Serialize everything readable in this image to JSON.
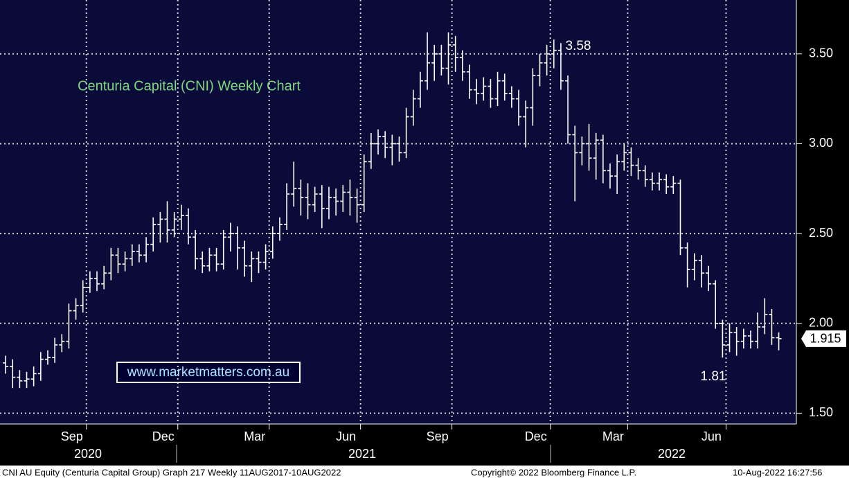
{
  "chart_data": {
    "type": "ohlc",
    "title": "Centuria Capital (CNI) Weekly Chart",
    "website": "www.marketmatters.com.au",
    "color": "#ffffff",
    "ylim": [
      1.44,
      3.8
    ],
    "yticks": [
      {
        "value": 1.5,
        "label": "1.50"
      },
      {
        "value": 2,
        "label": "2.00"
      },
      {
        "value": 2.5,
        "label": "2.50"
      },
      {
        "value": 3,
        "label": "3.00"
      },
      {
        "value": 3.5,
        "label": "3.50"
      }
    ],
    "grid": true,
    "categories": [
      null,
      null,
      null,
      null,
      null,
      null,
      null,
      null,
      null,
      null,
      null,
      null,
      "Sep",
      null,
      null,
      null,
      null,
      null,
      null,
      null,
      null,
      null,
      null,
      null,
      null,
      "Dec",
      null,
      null,
      null,
      null,
      null,
      null,
      null,
      null,
      null,
      null,
      null,
      null,
      "Mar",
      null,
      null,
      null,
      null,
      null,
      null,
      null,
      null,
      null,
      null,
      null,
      null,
      "Jun",
      null,
      null,
      null,
      null,
      null,
      null,
      null,
      null,
      null,
      null,
      null,
      null,
      "Sep",
      null,
      null,
      null,
      null,
      null,
      null,
      null,
      null,
      null,
      null,
      null,
      null,
      null,
      "Dec",
      null,
      null,
      null,
      null,
      null,
      null,
      null,
      null,
      null,
      null,
      "Mar",
      null,
      null,
      null,
      null,
      null,
      null,
      null,
      null,
      null,
      null,
      null,
      null,
      null,
      "Jun",
      null,
      null,
      null,
      null,
      null,
      null,
      null
    ],
    "years": [
      "2020",
      "2021",
      "2022"
    ],
    "open": [
      1.78,
      1.76,
      1.7,
      1.68,
      1.69,
      1.72,
      1.8,
      1.81,
      1.88,
      1.9,
      2.07,
      2.1,
      2.2,
      2.25,
      2.22,
      2.28,
      2.38,
      2.33,
      2.36,
      2.4,
      2.38,
      2.44,
      2.55,
      2.58,
      2.52,
      2.58,
      2.6,
      2.48,
      2.36,
      2.32,
      2.38,
      2.33,
      2.48,
      2.5,
      2.42,
      2.32,
      2.36,
      2.34,
      2.4,
      2.5,
      2.55,
      2.72,
      2.75,
      2.7,
      2.66,
      2.72,
      2.64,
      2.7,
      2.68,
      2.73,
      2.7,
      2.66,
      2.9,
      3.0,
      3.04,
      2.98,
      3.0,
      2.95,
      3.15,
      3.25,
      3.35,
      3.45,
      3.5,
      3.42,
      3.55,
      3.48,
      3.4,
      3.3,
      3.28,
      3.32,
      3.25,
      3.35,
      3.28,
      3.25,
      3.15,
      3.2,
      3.38,
      3.45,
      3.5,
      3.52,
      3.35,
      3.05,
      2.95,
      3.0,
      2.92,
      3.02,
      2.85,
      2.82,
      2.9,
      2.95,
      2.88,
      2.85,
      2.8,
      2.78,
      2.8,
      2.76,
      2.78,
      2.42,
      2.3,
      2.35,
      2.28,
      2.22,
      2.0,
      1.88,
      1.95,
      1.9,
      1.93,
      1.9,
      1.98,
      2.05,
      1.92
    ],
    "high": [
      1.82,
      1.8,
      1.74,
      1.73,
      1.76,
      1.84,
      1.85,
      1.92,
      1.94,
      2.11,
      2.14,
      2.24,
      2.29,
      2.29,
      2.32,
      2.42,
      2.42,
      2.4,
      2.44,
      2.44,
      2.48,
      2.59,
      2.62,
      2.68,
      2.62,
      2.66,
      2.64,
      2.52,
      2.4,
      2.42,
      2.42,
      2.52,
      2.56,
      2.54,
      2.46,
      2.4,
      2.4,
      2.44,
      2.54,
      2.59,
      2.78,
      2.9,
      2.8,
      2.78,
      2.76,
      2.77,
      2.76,
      2.75,
      2.77,
      2.8,
      2.75,
      2.94,
      3.06,
      3.08,
      3.07,
      3.05,
      3.04,
      3.2,
      3.3,
      3.4,
      3.62,
      3.55,
      3.55,
      3.62,
      3.6,
      3.52,
      3.44,
      3.36,
      3.37,
      3.36,
      3.4,
      3.39,
      3.32,
      3.3,
      3.24,
      3.42,
      3.5,
      3.55,
      3.58,
      3.56,
      3.38,
      3.1,
      3.04,
      3.11,
      3.06,
      3.05,
      2.89,
      2.94,
      3.0,
      2.98,
      2.92,
      2.88,
      2.84,
      2.84,
      2.83,
      2.82,
      2.8,
      2.45,
      2.39,
      2.38,
      2.32,
      2.24,
      2.02,
      2.0,
      1.98,
      1.97,
      1.96,
      2.06,
      2.14,
      2.08,
      1.95
    ],
    "low": [
      1.72,
      1.64,
      1.64,
      1.64,
      1.65,
      1.68,
      1.77,
      1.78,
      1.84,
      1.86,
      2.02,
      2.06,
      2.17,
      2.18,
      2.19,
      2.24,
      2.28,
      2.29,
      2.32,
      2.34,
      2.34,
      2.4,
      2.45,
      2.45,
      2.48,
      2.52,
      2.44,
      2.3,
      2.28,
      2.29,
      2.29,
      2.3,
      2.4,
      2.3,
      2.26,
      2.23,
      2.28,
      2.3,
      2.36,
      2.46,
      2.52,
      2.65,
      2.6,
      2.58,
      2.62,
      2.53,
      2.58,
      2.6,
      2.62,
      2.6,
      2.56,
      2.62,
      2.86,
      2.94,
      2.92,
      2.88,
      2.9,
      2.92,
      3.1,
      3.2,
      3.3,
      3.35,
      3.38,
      3.33,
      3.4,
      3.35,
      3.25,
      3.22,
      3.24,
      3.2,
      3.21,
      3.24,
      3.2,
      3.1,
      2.98,
      3.1,
      3.32,
      3.38,
      3.42,
      3.3,
      3.0,
      2.68,
      2.88,
      2.85,
      2.8,
      2.78,
      2.75,
      2.72,
      2.85,
      2.82,
      2.8,
      2.76,
      2.74,
      2.74,
      2.72,
      2.72,
      2.38,
      2.2,
      2.24,
      2.2,
      2.18,
      1.97,
      1.81,
      1.84,
      1.82,
      1.86,
      1.86,
      1.86,
      1.94,
      1.88,
      1.85
    ],
    "close": [
      1.76,
      1.7,
      1.68,
      1.69,
      1.72,
      1.8,
      1.81,
      1.88,
      1.9,
      2.07,
      2.1,
      2.2,
      2.25,
      2.22,
      2.28,
      2.38,
      2.33,
      2.36,
      2.4,
      2.38,
      2.44,
      2.55,
      2.58,
      2.52,
      2.58,
      2.6,
      2.48,
      2.36,
      2.32,
      2.38,
      2.33,
      2.48,
      2.5,
      2.42,
      2.32,
      2.36,
      2.34,
      2.4,
      2.5,
      2.55,
      2.72,
      2.75,
      2.7,
      2.66,
      2.72,
      2.64,
      2.7,
      2.68,
      2.73,
      2.7,
      2.66,
      2.9,
      3.0,
      3.04,
      2.98,
      3.0,
      2.95,
      3.15,
      3.25,
      3.35,
      3.45,
      3.5,
      3.42,
      3.55,
      3.48,
      3.4,
      3.3,
      3.28,
      3.32,
      3.25,
      3.35,
      3.28,
      3.25,
      3.15,
      3.2,
      3.38,
      3.45,
      3.5,
      3.52,
      3.35,
      3.05,
      2.95,
      3.0,
      2.92,
      3.02,
      2.85,
      2.82,
      2.9,
      2.95,
      2.88,
      2.85,
      2.8,
      2.78,
      2.8,
      2.76,
      2.78,
      2.42,
      2.3,
      2.35,
      2.28,
      2.22,
      2.0,
      1.88,
      1.95,
      1.9,
      1.93,
      1.9,
      1.98,
      2.05,
      1.92,
      1.915
    ],
    "annotations": [
      3.58,
      1.81
    ],
    "last_price": 1.915
  },
  "footer": {
    "left": "CNI AU Equity (Centuria Capital Group) Graph 217  Weekly 11AUG2017-10AUG2022",
    "center": "Copyright© 2022 Bloomberg Finance L.P.",
    "right": "10-Aug-2022 16:27:56"
  }
}
